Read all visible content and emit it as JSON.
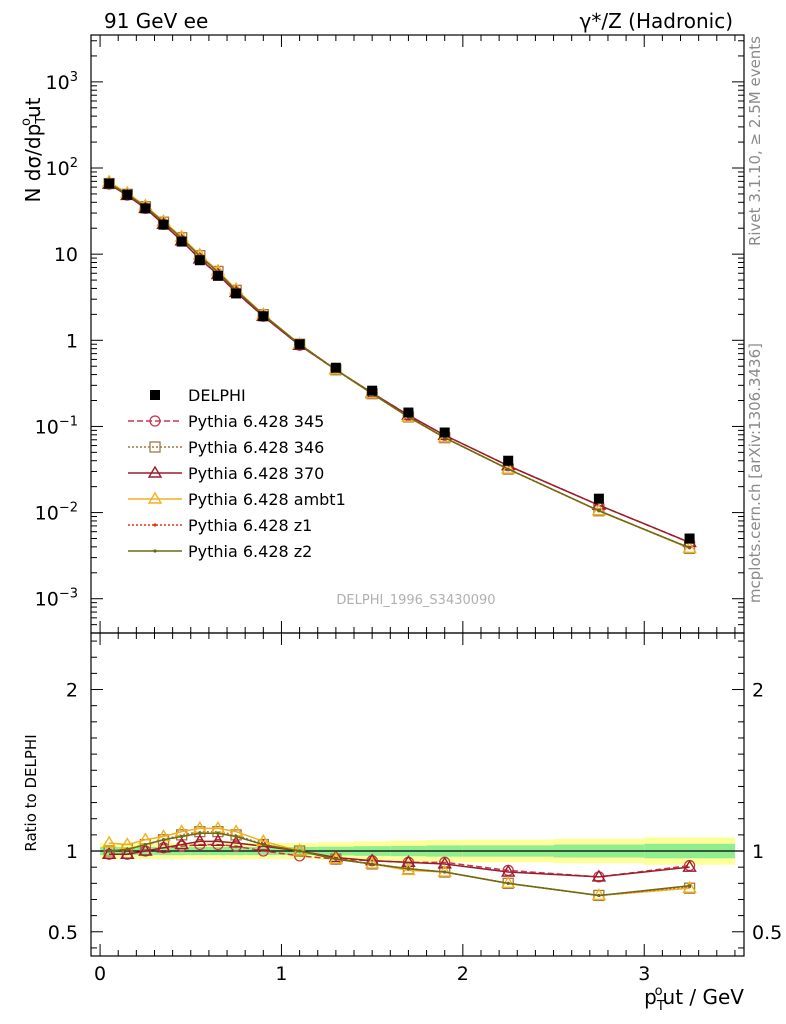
{
  "header": {
    "left": "91 GeV ee",
    "right_prefix": "γ*/Z (Hadronic)"
  },
  "side_text": {
    "rivet": "Rivet 3.1.10, ≥ 2.5M events",
    "mcplots": "mcplots.cern.ch [arXiv:1306.3436]"
  },
  "watermark": "DELPHI_1996_S3430090",
  "chart_data": [
    {
      "type": "scatter",
      "title": "",
      "ylabel": "N dσ/dp_T^out",
      "xlabel": "p_T^out / GeV",
      "xlim": [
        -0.05,
        3.55
      ],
      "ylim": [
        0.0004,
        3500
      ],
      "yscale": "log",
      "x_ticks": [
        "0",
        "1",
        "2",
        "3"
      ],
      "y_ticks": [
        "10^-3",
        "10^-2",
        "10^-1",
        "1",
        "10",
        "10^2",
        "10^3"
      ],
      "x": [
        0.05,
        0.15,
        0.25,
        0.35,
        0.45,
        0.55,
        0.65,
        0.75,
        0.9,
        1.1,
        1.3,
        1.5,
        1.7,
        1.9,
        2.25,
        2.75,
        3.25
      ],
      "legend_position": "center-left",
      "series": [
        {
          "name": "DELPHI",
          "color": "#000000",
          "marker": "square",
          "values": [
            66,
            49,
            34,
            22,
            14,
            8.5,
            5.6,
            3.5,
            1.9,
            0.9,
            0.48,
            0.26,
            0.145,
            0.085,
            0.04,
            0.0145,
            0.005
          ]
        },
        {
          "name": "Pythia 6.428 345",
          "color": "#c8364f",
          "marker": "circle-open",
          "dash": "6,3",
          "values": [
            65,
            48.5,
            34,
            22.2,
            14.3,
            8.8,
            5.8,
            3.6,
            1.9,
            0.875,
            0.455,
            0.245,
            0.135,
            0.079,
            0.035,
            0.0122,
            0.0045
          ]
        },
        {
          "name": "Pythia 6.428 346",
          "color": "#a07840",
          "marker": "square-open",
          "dash": "2,2",
          "values": [
            66,
            49.5,
            35.5,
            23.5,
            15.5,
            9.6,
            6.3,
            3.8,
            1.98,
            0.9,
            0.455,
            0.24,
            0.129,
            0.074,
            0.032,
            0.0105,
            0.00385
          ]
        },
        {
          "name": "Pythia 6.428 370",
          "color": "#9c1c2c",
          "marker": "triangle-open",
          "values": [
            65,
            48,
            34,
            22.2,
            14.3,
            8.8,
            5.8,
            3.6,
            1.9,
            0.875,
            0.455,
            0.245,
            0.135,
            0.079,
            0.035,
            0.0122,
            0.0045
          ]
        },
        {
          "name": "Pythia 6.428 ambt1",
          "color": "#f0b020",
          "marker": "triangle-open",
          "values": [
            69,
            51,
            36.5,
            24,
            15.8,
            9.8,
            6.4,
            3.9,
            2.0,
            0.9,
            0.455,
            0.24,
            0.128,
            0.074,
            0.032,
            0.0105,
            0.00385
          ]
        },
        {
          "name": "Pythia 6.428 z1",
          "color": "#e8321a",
          "marker": "dot",
          "dash": "2,2",
          "values": [
            66,
            49.5,
            35.5,
            23.5,
            15.3,
            9.5,
            6.2,
            3.8,
            1.97,
            0.9,
            0.455,
            0.24,
            0.129,
            0.074,
            0.032,
            0.0105,
            0.0039
          ]
        },
        {
          "name": "Pythia 6.428 z2",
          "color": "#6b6b14",
          "marker": "dot",
          "values": [
            66,
            49.5,
            35.5,
            23.5,
            15.3,
            9.5,
            6.2,
            3.8,
            1.97,
            0.9,
            0.455,
            0.24,
            0.129,
            0.074,
            0.032,
            0.0105,
            0.0039
          ]
        }
      ]
    },
    {
      "type": "line",
      "title": "",
      "ylabel": "Ratio to DELPHI",
      "xlabel": "p_T^out / GeV",
      "xlim": [
        -0.05,
        3.55
      ],
      "ylim": [
        0.35,
        2.35
      ],
      "y_ticks": [
        "0.5",
        "1",
        "2"
      ],
      "x_ticks": [
        "0",
        "1",
        "2",
        "3"
      ],
      "band_edges": [
        0.0,
        0.1,
        0.2,
        0.3,
        0.4,
        0.5,
        0.6,
        0.7,
        0.8,
        1.0,
        1.2,
        1.4,
        1.6,
        1.8,
        2.0,
        2.5,
        3.0,
        3.5
      ],
      "band_inner": [
        0.025,
        0.025,
        0.025,
        0.025,
        0.025,
        0.025,
        0.025,
        0.025,
        0.025,
        0.025,
        0.027,
        0.03,
        0.032,
        0.035,
        0.035,
        0.04,
        0.045
      ],
      "band_outer": [
        0.05,
        0.05,
        0.05,
        0.05,
        0.05,
        0.05,
        0.05,
        0.05,
        0.05,
        0.05,
        0.055,
        0.06,
        0.065,
        0.068,
        0.07,
        0.075,
        0.085
      ],
      "band_inner_color": "#90ee90",
      "band_outer_color": "#ffff99",
      "x": [
        0.05,
        0.15,
        0.25,
        0.35,
        0.45,
        0.55,
        0.65,
        0.75,
        0.9,
        1.1,
        1.3,
        1.5,
        1.7,
        1.9,
        2.25,
        2.75,
        3.25
      ],
      "series": [
        {
          "name": "Pythia 6.428 345",
          "color": "#c8364f",
          "marker": "circle-open",
          "dash": "6,3",
          "values": [
            0.98,
            0.98,
            1.0,
            1.02,
            1.03,
            1.04,
            1.04,
            1.03,
            1.0,
            0.97,
            0.95,
            0.94,
            0.93,
            0.93,
            0.88,
            0.84,
            0.91
          ]
        },
        {
          "name": "Pythia 6.428 346",
          "color": "#a07840",
          "marker": "square-open",
          "dash": "2,2",
          "values": [
            1.0,
            1.01,
            1.04,
            1.07,
            1.1,
            1.12,
            1.12,
            1.1,
            1.04,
            1.0,
            0.95,
            0.92,
            0.89,
            0.87,
            0.8,
            0.725,
            0.77
          ]
        },
        {
          "name": "Pythia 6.428 370",
          "color": "#9c1c2c",
          "marker": "triangle-open",
          "values": [
            0.98,
            0.98,
            1.0,
            1.02,
            1.04,
            1.06,
            1.06,
            1.05,
            1.03,
            1.0,
            0.96,
            0.94,
            0.93,
            0.92,
            0.87,
            0.84,
            0.9
          ]
        },
        {
          "name": "Pythia 6.428 ambt1",
          "color": "#f0b020",
          "marker": "triangle-open",
          "values": [
            1.05,
            1.04,
            1.07,
            1.09,
            1.12,
            1.14,
            1.14,
            1.12,
            1.06,
            1.0,
            0.95,
            0.92,
            0.88,
            0.87,
            0.8,
            0.725,
            0.77
          ]
        },
        {
          "name": "Pythia 6.428 z1",
          "color": "#e8321a",
          "marker": "dot",
          "dash": "2,2",
          "values": [
            1.0,
            1.01,
            1.04,
            1.07,
            1.09,
            1.11,
            1.11,
            1.09,
            1.04,
            1.0,
            0.95,
            0.92,
            0.89,
            0.87,
            0.8,
            0.725,
            0.78
          ]
        },
        {
          "name": "Pythia 6.428 z2",
          "color": "#6b6b14",
          "marker": "dot",
          "values": [
            1.0,
            1.01,
            1.04,
            1.07,
            1.09,
            1.11,
            1.11,
            1.09,
            1.04,
            1.0,
            0.95,
            0.92,
            0.89,
            0.87,
            0.8,
            0.725,
            0.785
          ]
        }
      ]
    }
  ]
}
